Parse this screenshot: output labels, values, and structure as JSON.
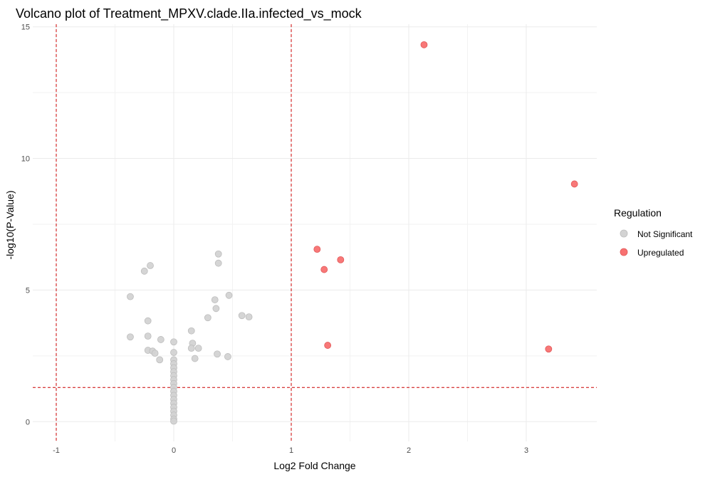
{
  "chart_data": {
    "type": "scatter",
    "title": "Volcano plot of Treatment_MPXV.clade.IIa.infected_vs_mock",
    "xlabel": "Log2 Fold Change",
    "ylabel": "-log10(P-Value)",
    "xlim": [
      -1.2,
      3.6
    ],
    "ylim": [
      -0.75,
      15.1
    ],
    "x_ticks": [
      -1,
      0,
      1,
      2,
      3
    ],
    "y_ticks": [
      0,
      5,
      10,
      15
    ],
    "x_tick_labels": [
      "-1",
      "0",
      "1",
      "2",
      "3"
    ],
    "y_tick_labels": [
      "0",
      "5",
      "10",
      "15"
    ],
    "grid": true,
    "thresholds": {
      "vertical": [
        -1,
        1
      ],
      "horizontal": [
        1.3
      ]
    },
    "legend": {
      "title": "Regulation",
      "position": "right",
      "items": [
        {
          "label": "Not Significant",
          "color": "#d3d3d3"
        },
        {
          "label": "Upregulated",
          "color": "#f87171"
        }
      ]
    },
    "series": [
      {
        "name": "Not Significant",
        "color": "#d3d3d3",
        "points": [
          [
            -0.37,
            4.75
          ],
          [
            -0.25,
            5.72
          ],
          [
            -0.2,
            5.93
          ],
          [
            -0.37,
            3.22
          ],
          [
            -0.22,
            3.83
          ],
          [
            -0.22,
            3.25
          ],
          [
            -0.22,
            2.71
          ],
          [
            -0.18,
            2.68
          ],
          [
            -0.16,
            2.6
          ],
          [
            -0.11,
            3.12
          ],
          [
            -0.12,
            2.35
          ],
          [
            0.0,
            3.03
          ],
          [
            0.0,
            2.63
          ],
          [
            0.15,
            3.45
          ],
          [
            0.16,
            2.98
          ],
          [
            0.15,
            2.79
          ],
          [
            0.21,
            2.79
          ],
          [
            0.18,
            2.4
          ],
          [
            0.29,
            3.95
          ],
          [
            0.35,
            4.63
          ],
          [
            0.36,
            4.3
          ],
          [
            0.38,
            6.37
          ],
          [
            0.38,
            6.02
          ],
          [
            0.47,
            4.8
          ],
          [
            0.58,
            4.03
          ],
          [
            0.64,
            3.98
          ],
          [
            0.37,
            2.57
          ],
          [
            0.46,
            2.47
          ],
          [
            0.0,
            2.35
          ],
          [
            0.0,
            2.2
          ],
          [
            0.0,
            2.05
          ],
          [
            0.0,
            1.9
          ],
          [
            0.0,
            1.75
          ],
          [
            0.0,
            1.6
          ],
          [
            0.0,
            1.45
          ],
          [
            0.0,
            1.3
          ],
          [
            0.0,
            1.15
          ],
          [
            0.0,
            1.0
          ],
          [
            0.0,
            0.85
          ],
          [
            0.0,
            0.7
          ],
          [
            0.0,
            0.55
          ],
          [
            0.0,
            0.4
          ],
          [
            0.0,
            0.25
          ],
          [
            0.0,
            0.1
          ],
          [
            0.0,
            0.02
          ]
        ]
      },
      {
        "name": "Upregulated",
        "color": "#f87171",
        "points": [
          [
            2.13,
            14.32
          ],
          [
            3.41,
            9.03
          ],
          [
            1.22,
            6.55
          ],
          [
            1.42,
            6.15
          ],
          [
            1.28,
            5.78
          ],
          [
            1.31,
            2.9
          ],
          [
            3.19,
            2.76
          ]
        ]
      }
    ]
  }
}
